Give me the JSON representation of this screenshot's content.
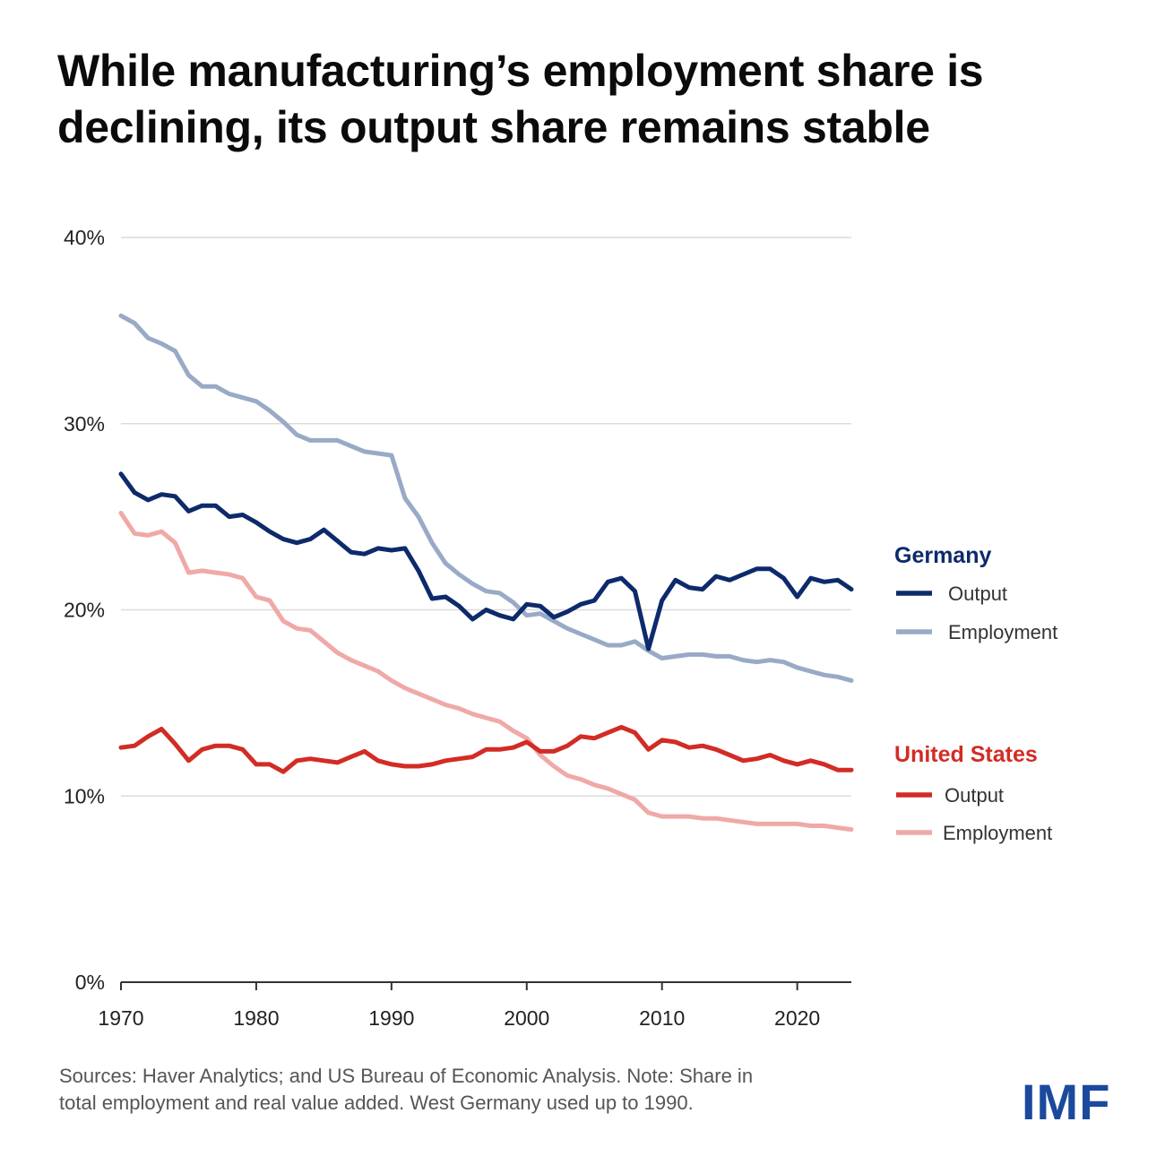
{
  "title_lines": [
    "While manufacturing’s employment share is",
    "declining, its output share remains stable"
  ],
  "footer_lines": [
    "Sources: Haver Analytics; and US Bureau of Economic Analysis. Note: Share in",
    "total employment and real value added. West Germany used up to 1990."
  ],
  "logo_text": "IMF",
  "legend": {
    "germany": {
      "title": "Germany",
      "color": "#0d2a6b",
      "output": "Output",
      "employment": "Employment"
    },
    "us": {
      "title": "United States",
      "color": "#d22c25",
      "output": "Output",
      "employment": "Employment"
    }
  },
  "chart_data": {
    "type": "line",
    "title": "While manufacturing’s employment share is declining, its output share remains stable",
    "xlabel": "",
    "ylabel": "",
    "xlim": [
      1970,
      2024
    ],
    "ylim": [
      0,
      40
    ],
    "yticks": [
      0,
      10,
      20,
      30,
      40
    ],
    "ytick_labels": [
      "0%",
      "10%",
      "20%",
      "30%",
      "40%"
    ],
    "xticks": [
      1970,
      1980,
      1990,
      2000,
      2010,
      2020
    ],
    "xtick_labels": [
      "1970",
      "1980",
      "1990",
      "2000",
      "2010",
      "2020"
    ],
    "grid": true,
    "legend_position": "right",
    "x": [
      1970,
      1971,
      1972,
      1973,
      1974,
      1975,
      1976,
      1977,
      1978,
      1979,
      1980,
      1981,
      1982,
      1983,
      1984,
      1985,
      1986,
      1987,
      1988,
      1989,
      1990,
      1991,
      1992,
      1993,
      1994,
      1995,
      1996,
      1997,
      1998,
      1999,
      2000,
      2001,
      2002,
      2003,
      2004,
      2005,
      2006,
      2007,
      2008,
      2009,
      2010,
      2011,
      2012,
      2013,
      2014,
      2015,
      2016,
      2017,
      2018,
      2019,
      2020,
      2021,
      2022,
      2023,
      2024
    ],
    "series": [
      {
        "group": "Germany",
        "name": "Output",
        "color": "#0d2a6b",
        "values": [
          27.3,
          26.3,
          25.9,
          26.2,
          26.1,
          25.3,
          25.6,
          25.6,
          25.0,
          25.1,
          24.7,
          24.2,
          23.8,
          23.6,
          23.8,
          24.3,
          23.7,
          23.1,
          23.0,
          23.3,
          23.2,
          23.3,
          22.1,
          20.6,
          20.7,
          20.2,
          19.5,
          20.0,
          19.7,
          19.5,
          20.3,
          20.2,
          19.6,
          19.9,
          20.3,
          20.5,
          21.5,
          21.7,
          21.0,
          17.9,
          20.5,
          21.6,
          21.2,
          21.1,
          21.8,
          21.6,
          21.9,
          22.2,
          22.2,
          21.7,
          20.7,
          21.7,
          21.5,
          21.6,
          21.1
        ]
      },
      {
        "group": "Germany",
        "name": "Employment",
        "color": "#99aac7",
        "values": [
          35.8,
          35.4,
          34.6,
          34.3,
          33.9,
          32.6,
          32.0,
          32.0,
          31.6,
          31.4,
          31.2,
          30.7,
          30.1,
          29.4,
          29.1,
          29.1,
          29.1,
          28.8,
          28.5,
          28.4,
          28.3,
          26.0,
          25.0,
          23.6,
          22.5,
          21.9,
          21.4,
          21.0,
          20.9,
          20.4,
          19.7,
          19.8,
          19.4,
          19.0,
          18.7,
          18.4,
          18.1,
          18.1,
          18.3,
          17.8,
          17.4,
          17.5,
          17.6,
          17.6,
          17.5,
          17.5,
          17.3,
          17.2,
          17.3,
          17.2,
          16.9,
          16.7,
          16.5,
          16.4,
          16.2
        ]
      },
      {
        "group": "United States",
        "name": "Output",
        "color": "#d22c25",
        "values": [
          12.6,
          12.7,
          13.2,
          13.6,
          12.8,
          11.9,
          12.5,
          12.7,
          12.7,
          12.5,
          11.7,
          11.7,
          11.3,
          11.9,
          12.0,
          11.9,
          11.8,
          12.1,
          12.4,
          11.9,
          11.7,
          11.6,
          11.6,
          11.7,
          11.9,
          12.0,
          12.1,
          12.5,
          12.5,
          12.6,
          12.9,
          12.4,
          12.4,
          12.7,
          13.2,
          13.1,
          13.4,
          13.7,
          13.4,
          12.5,
          13.0,
          12.9,
          12.6,
          12.7,
          12.5,
          12.2,
          11.9,
          12.0,
          12.2,
          11.9,
          11.7,
          11.9,
          11.7,
          11.4,
          11.4
        ]
      },
      {
        "group": "United States",
        "name": "Employment",
        "color": "#efa9a6",
        "values": [
          25.2,
          24.1,
          24.0,
          24.2,
          23.6,
          22.0,
          22.1,
          22.0,
          21.9,
          21.7,
          20.7,
          20.5,
          19.4,
          19.0,
          18.9,
          18.3,
          17.7,
          17.3,
          17.0,
          16.7,
          16.2,
          15.8,
          15.5,
          15.2,
          14.9,
          14.7,
          14.4,
          14.2,
          14.0,
          13.5,
          13.1,
          12.2,
          11.6,
          11.1,
          10.9,
          10.6,
          10.4,
          10.1,
          9.8,
          9.1,
          8.9,
          8.9,
          8.9,
          8.8,
          8.8,
          8.7,
          8.6,
          8.5,
          8.5,
          8.5,
          8.5,
          8.4,
          8.4,
          8.3,
          8.2
        ]
      }
    ]
  }
}
